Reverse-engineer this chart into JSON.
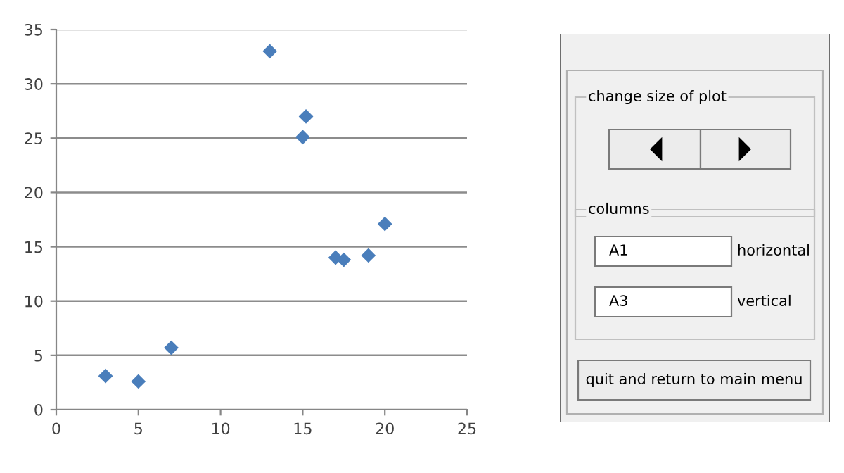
{
  "chart_data": [
    {
      "type": "scatter",
      "x": [
        3,
        5,
        7,
        13,
        15,
        15.2,
        17,
        17.5,
        19,
        20
      ],
      "values": [
        3.1,
        2.6,
        5.7,
        33.0,
        25.1,
        27.0,
        14.0,
        13.8,
        14.2,
        17.1
      ],
      "color": "#4a7ebb",
      "marker": "diamond",
      "xlim": [
        0,
        25
      ],
      "xticks": [
        0,
        5,
        10,
        15,
        20,
        25
      ],
      "ylim": [
        0,
        35
      ],
      "yticks": [
        0,
        5,
        10,
        15,
        20,
        25,
        30,
        35
      ],
      "grid": "y",
      "legend": false
    },
    {
      "type": "other",
      "annotations": [
        "change size of plot",
        "columns",
        "A1",
        "horizontal",
        "A3",
        "vertical",
        "quit and return to main menu"
      ]
    }
  ]
}
